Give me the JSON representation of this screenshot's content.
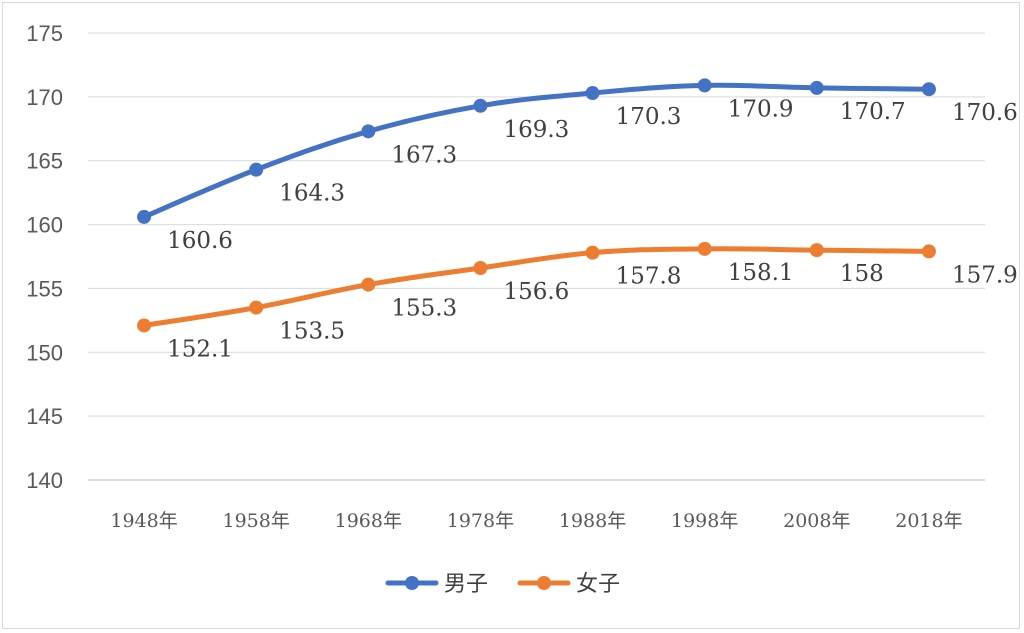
{
  "chart_data": {
    "type": "line",
    "categories": [
      "1948年",
      "1958年",
      "1968年",
      "1978年",
      "1988年",
      "1998年",
      "2008年",
      "2018年"
    ],
    "series": [
      {
        "name": "男子",
        "color": "#4472C4",
        "values": [
          160.6,
          164.3,
          167.3,
          169.3,
          170.3,
          170.9,
          170.7,
          170.6
        ],
        "labels": [
          "160.6",
          "164.3",
          "167.3",
          "169.3",
          "170.3",
          "170.9",
          "170.7",
          "170.6"
        ]
      },
      {
        "name": "女子",
        "color": "#ED7D31",
        "values": [
          152.1,
          153.5,
          155.3,
          156.6,
          157.8,
          158.1,
          158,
          157.9
        ],
        "labels": [
          "152.1",
          "153.5",
          "155.3",
          "156.6",
          "157.8",
          "158.1",
          "158",
          "157.9"
        ]
      }
    ],
    "ylim": [
      140,
      175
    ],
    "yticks": [
      "140",
      "145",
      "150",
      "155",
      "160",
      "165",
      "170",
      "175"
    ],
    "grid": true,
    "legend": "bottom",
    "title": "",
    "xlabel": "",
    "ylabel": ""
  }
}
